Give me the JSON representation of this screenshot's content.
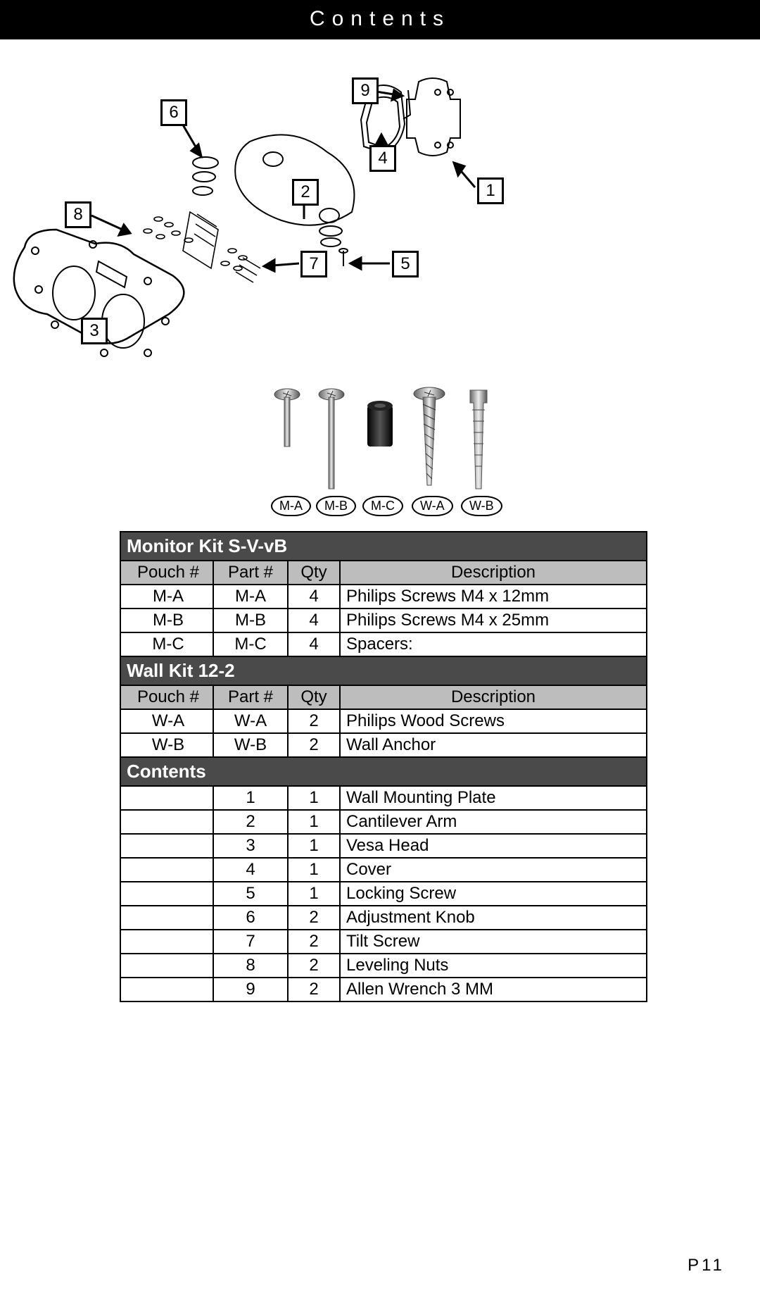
{
  "header": "Contents",
  "page_number": "P11",
  "callouts": {
    "c1": "1",
    "c2": "2",
    "c3": "3",
    "c4": "4",
    "c5": "5",
    "c6": "6",
    "c7": "7",
    "c8": "8",
    "c9": "9"
  },
  "hardware_labels": {
    "a": "M-A",
    "b": "M-B",
    "c": "M-C",
    "d": "W-A",
    "e": "W-B"
  },
  "table": {
    "section_monitor": "Monitor Kit S-V-vB",
    "section_wall": "Wall Kit 12-2",
    "section_contents": "Contents",
    "headers": {
      "pouch": "Pouch #",
      "part": "Part #",
      "qty": "Qty",
      "desc": "Description"
    },
    "monitor_rows": [
      {
        "pouch": "M-A",
        "part": "M-A",
        "qty": "4",
        "desc": "Philips Screws M4 x 12mm"
      },
      {
        "pouch": "M-B",
        "part": "M-B",
        "qty": "4",
        "desc": "Philips Screws M4 x 25mm"
      },
      {
        "pouch": "M-C",
        "part": "M-C",
        "qty": "4",
        "desc": "Spacers:"
      }
    ],
    "wall_rows": [
      {
        "pouch": "W-A",
        "part": "W-A",
        "qty": "2",
        "desc": "Philips Wood Screws"
      },
      {
        "pouch": "W-B",
        "part": "W-B",
        "qty": "2",
        "desc": " Wall Anchor"
      }
    ],
    "contents_rows": [
      {
        "pouch": "",
        "part": "1",
        "qty": "1",
        "desc": "Wall Mounting Plate"
      },
      {
        "pouch": "",
        "part": "2",
        "qty": "1",
        "desc": "Cantilever Arm"
      },
      {
        "pouch": "",
        "part": "3",
        "qty": "1",
        "desc": "Vesa Head"
      },
      {
        "pouch": "",
        "part": "4",
        "qty": "1",
        "desc": "Cover"
      },
      {
        "pouch": "",
        "part": "5",
        "qty": "1",
        "desc": "Locking Screw"
      },
      {
        "pouch": "",
        "part": "6",
        "qty": "2",
        "desc": "Adjustment Knob"
      },
      {
        "pouch": "",
        "part": "7",
        "qty": "2",
        "desc": "Tilt Screw"
      },
      {
        "pouch": "",
        "part": "8",
        "qty": "2",
        "desc": "Leveling Nuts"
      },
      {
        "pouch": "",
        "part": "9",
        "qty": "2",
        "desc": "Allen Wrench 3 MM"
      }
    ]
  }
}
